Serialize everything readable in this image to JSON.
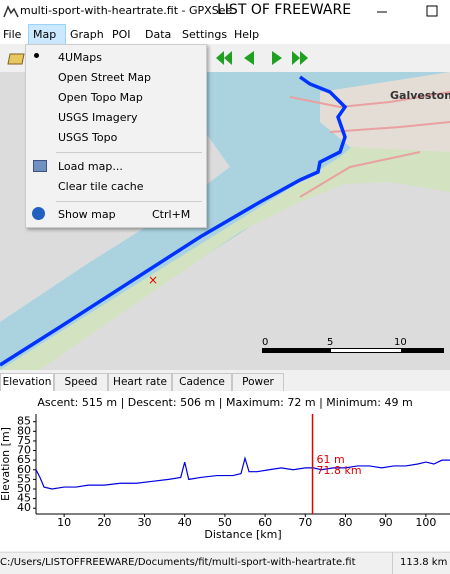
{
  "window": {
    "title": "multi-sport-with-heartrate.fit - GPXSee",
    "watermark": "LIST OF FREEWARE"
  },
  "menu": [
    "File",
    "Map",
    "Graph",
    "POI",
    "Data",
    "Settings",
    "Help"
  ],
  "map_menu": [
    "4UMaps",
    "Open Street Map",
    "Open Topo Map",
    "USGS Imagery",
    "USGS Topo",
    "Load map...",
    "Clear tile cache",
    "Show map"
  ],
  "map_menu_shortcut": "Ctrl+M",
  "map": {
    "place": "Galveston",
    "scale": [
      0,
      5,
      10
    ]
  },
  "tabs": [
    "Elevation",
    "Speed",
    "Heart rate",
    "Cadence",
    "Power"
  ],
  "stats": "Ascent: 515 m | Descent: 506 m | Maximum: 72 m | Minimum: 49 m",
  "chart_data": {
    "type": "line",
    "y_label": "Elevation [m]",
    "x_label": "Distance [km]",
    "x": [
      3,
      4,
      5,
      7,
      10,
      13,
      16,
      20,
      24,
      28,
      32,
      36,
      39,
      40,
      41,
      44,
      48,
      52,
      54,
      55,
      56,
      58,
      61,
      64,
      67,
      70,
      72,
      74,
      77,
      80,
      83,
      86,
      89,
      92,
      95,
      98,
      100,
      102,
      104,
      106
    ],
    "series": [
      {
        "color": "#0000e0",
        "values": [
          60,
          56,
          51,
          50,
          51,
          51,
          52,
          52,
          53,
          53,
          54,
          55,
          56,
          64,
          55,
          56,
          57,
          57,
          58,
          66,
          59,
          59,
          60,
          61,
          60,
          61,
          61,
          60,
          61,
          61,
          62,
          62,
          61,
          62,
          62,
          63,
          64,
          63,
          65,
          65
        ]
      }
    ],
    "xlim": [
      3,
      106
    ],
    "ylim": [
      37,
      89
    ],
    "xticks": [
      10,
      20,
      30,
      40,
      50,
      60,
      70,
      80,
      90,
      100
    ],
    "yticks": [
      40,
      45,
      50,
      55,
      60,
      65,
      70,
      75,
      80,
      85
    ],
    "cursor": {
      "x": 71.8,
      "elevation_label": "61 m",
      "distance_label": "71.8 km",
      "color": "#e00000"
    }
  },
  "status": {
    "path": "C:/Users/LISTOFFREEWARE/Documents/fit/multi-sport-with-heartrate.fit",
    "distance": "113.8 km"
  }
}
